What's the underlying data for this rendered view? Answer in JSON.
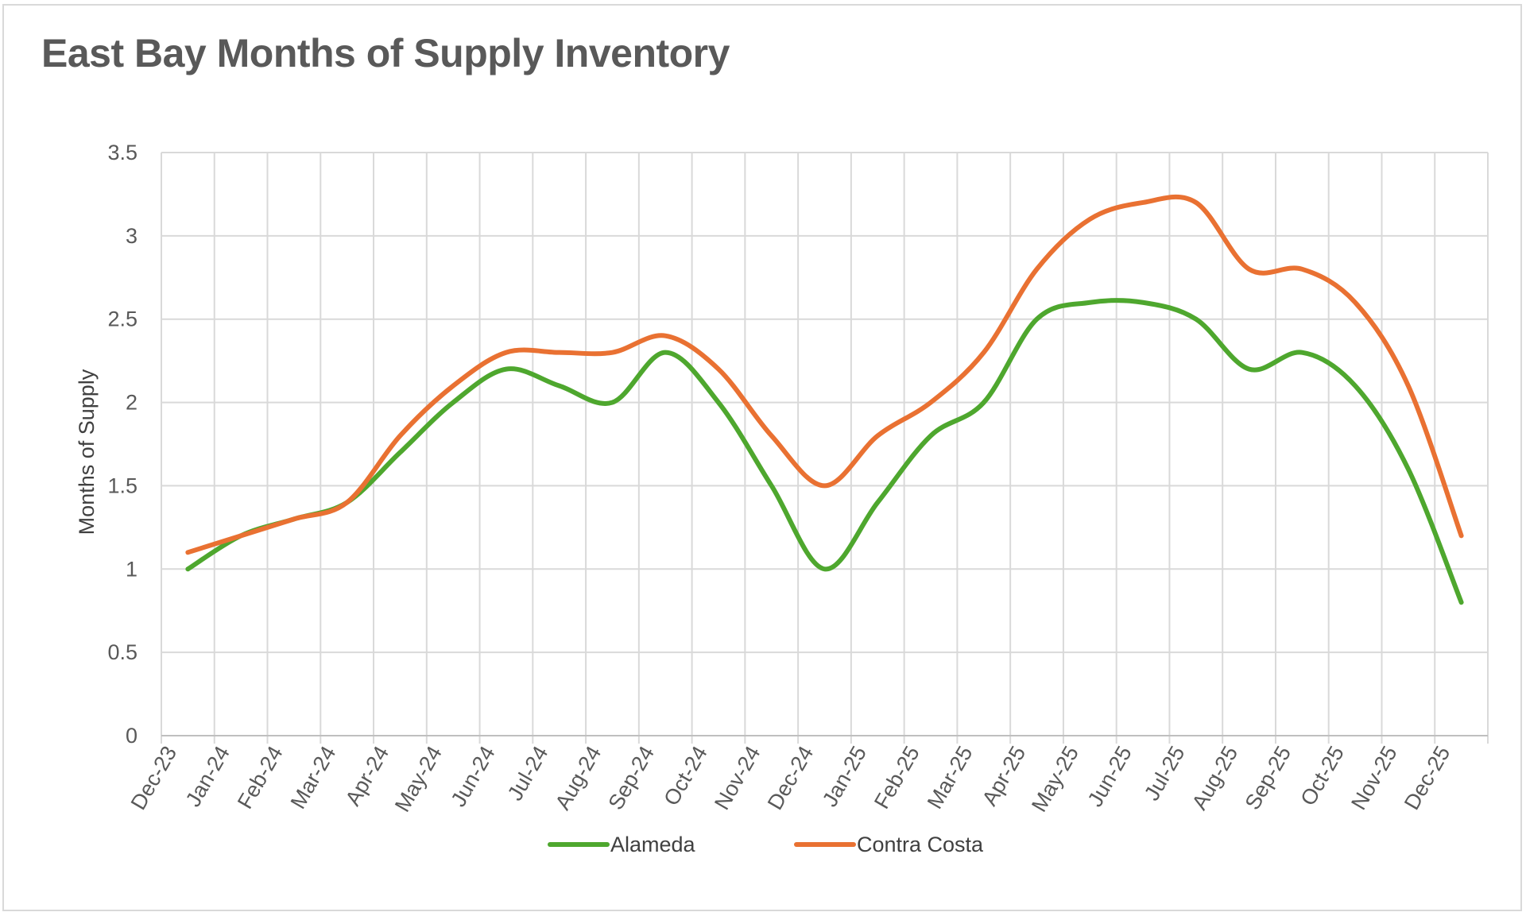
{
  "chart_data": {
    "type": "line",
    "title": "East Bay Months of Supply Inventory",
    "ylabel": "Months of Supply",
    "xlabel": "",
    "ylim": [
      0,
      3.5
    ],
    "yticks": [
      "0",
      "0.5",
      "1",
      "1.5",
      "2",
      "2.5",
      "3",
      "3.5"
    ],
    "grid": true,
    "smooth": true,
    "legend_position": "bottom",
    "categories": [
      "Dec-23",
      "Jan-24",
      "Feb-24",
      "Mar-24",
      "Apr-24",
      "May-24",
      "Jun-24",
      "Jul-24",
      "Aug-24",
      "Sep-24",
      "Oct-24",
      "Nov-24",
      "Dec-24",
      "Jan-25",
      "Feb-25",
      "Mar-25",
      "Apr-25",
      "May-25",
      "Jun-25",
      "Jul-25",
      "Aug-25",
      "Sep-25",
      "Oct-25",
      "Nov-25",
      "Dec-25"
    ],
    "series": [
      {
        "name": "Alameda",
        "color": "#4ea72e",
        "values": [
          1.0,
          1.2,
          1.3,
          1.4,
          1.7,
          2.0,
          2.2,
          2.1,
          2.0,
          2.3,
          2.0,
          1.5,
          1.0,
          1.4,
          1.8,
          2.0,
          2.5,
          2.6,
          2.6,
          2.5,
          2.2,
          2.3,
          2.1,
          1.6,
          0.8
        ]
      },
      {
        "name": "Contra Costa",
        "color": "#e97132",
        "values": [
          1.1,
          1.2,
          1.3,
          1.4,
          1.8,
          2.1,
          2.3,
          2.3,
          2.3,
          2.4,
          2.2,
          1.8,
          1.5,
          1.8,
          2.0,
          2.3,
          2.8,
          3.1,
          3.2,
          3.2,
          2.8,
          2.8,
          2.6,
          2.1,
          1.2
        ]
      }
    ]
  }
}
